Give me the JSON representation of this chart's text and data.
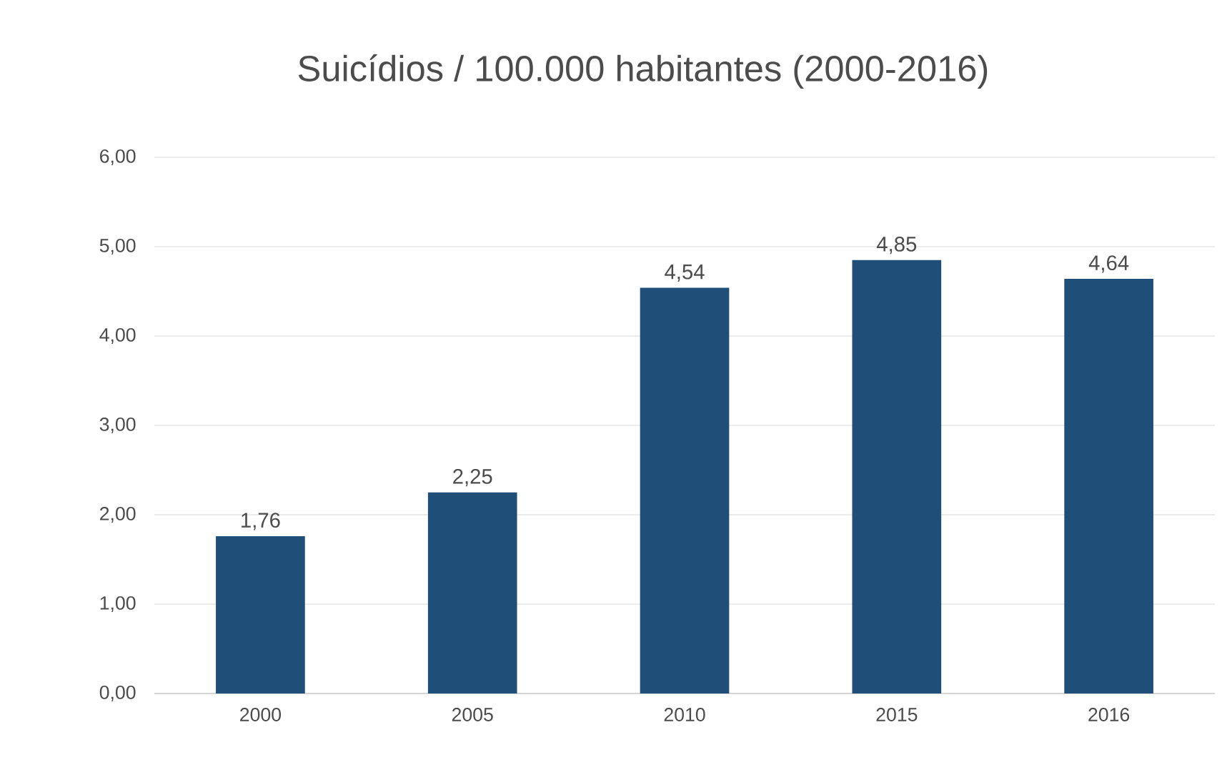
{
  "chart_data": {
    "type": "bar",
    "title": "Suicídios / 100.000 habitantes (2000-2016)",
    "categories": [
      "2000",
      "2005",
      "2010",
      "2015",
      "2016"
    ],
    "values": [
      1.76,
      2.25,
      4.54,
      4.85,
      4.64
    ],
    "value_labels": [
      "1,76",
      "2,25",
      "4,54",
      "4,85",
      "4,64"
    ],
    "color": "#1f4e79",
    "ylim": [
      0,
      6
    ],
    "yticks": [
      {
        "value": 0,
        "label": "0,00"
      },
      {
        "value": 1,
        "label": "1,00"
      },
      {
        "value": 2,
        "label": "2,00"
      },
      {
        "value": 3,
        "label": "3,00"
      },
      {
        "value": 4,
        "label": "4,00"
      },
      {
        "value": 5,
        "label": "5,00"
      },
      {
        "value": 6,
        "label": "6,00"
      }
    ],
    "grid": "y"
  }
}
